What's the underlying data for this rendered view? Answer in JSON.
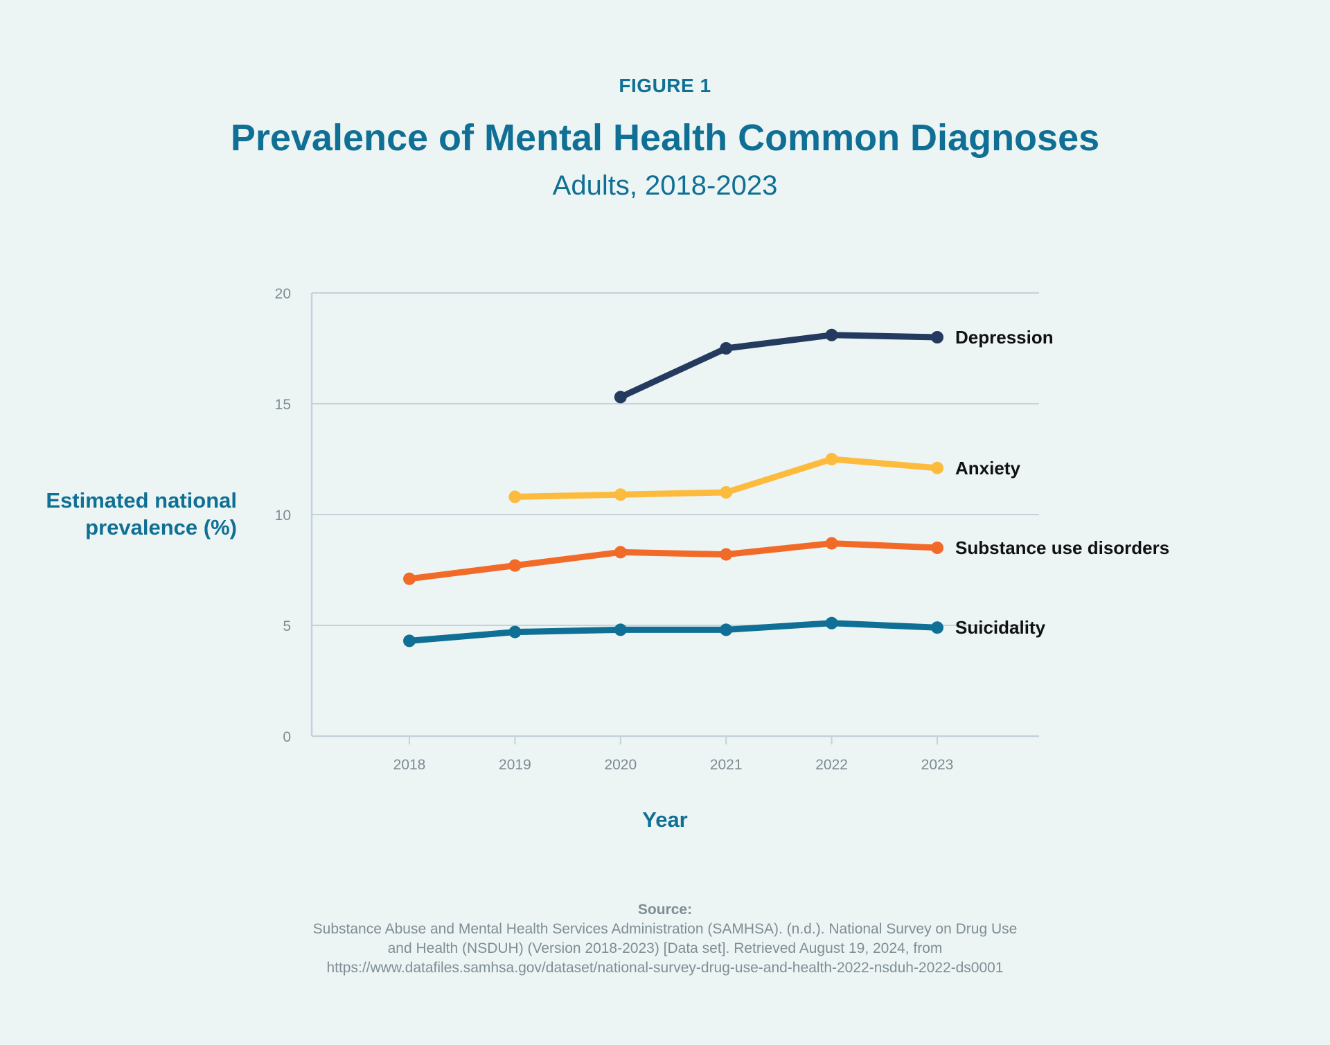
{
  "figure_label": "FIGURE 1",
  "colors": {
    "accent": "#0f6f94",
    "grid": "#c5d2db",
    "tick_text": "#7d8a93",
    "label_text": "#111111",
    "depression": "#243a5e",
    "anxiety": "#fdbb3e",
    "substance": "#f26a28",
    "suicidality": "#0f6f94"
  },
  "chart_data": {
    "type": "line",
    "title": "Prevalence of Mental Health Common Diagnoses",
    "subtitle": "Adults, 2018-2023",
    "xlabel": "Year",
    "ylabel_lines": [
      "Estimated national",
      "prevalence (%)"
    ],
    "x": [
      "2018",
      "2019",
      "2020",
      "2021",
      "2022",
      "2023"
    ],
    "ylim": [
      0,
      20
    ],
    "yticks": [
      0,
      5,
      10,
      15,
      20
    ],
    "grid": true,
    "legend": "direct labels at right end of each line",
    "series": [
      {
        "name": "Depression",
        "color": "#243a5e",
        "values": [
          null,
          null,
          15.3,
          17.5,
          18.1,
          18.0
        ]
      },
      {
        "name": "Anxiety",
        "color": "#fdbb3e",
        "values": [
          null,
          10.8,
          10.9,
          11.0,
          12.5,
          12.1
        ]
      },
      {
        "name": "Substance use disorders",
        "color": "#f26a28",
        "values": [
          7.1,
          7.7,
          8.3,
          8.2,
          8.7,
          8.5
        ]
      },
      {
        "name": "Suicidality",
        "color": "#0f6f94",
        "values": [
          4.3,
          4.7,
          4.8,
          4.8,
          5.1,
          4.9
        ]
      }
    ]
  },
  "source": {
    "heading": "Source:",
    "line1": "Substance Abuse and Mental Health Services Administration (SAMHSA). (n.d.). National Survey on Drug Use",
    "line2": "and Health (NSDUH) (Version 2018-2023) [Data set]. Retrieved August 19, 2024, from",
    "line3": "https://www.datafiles.samhsa.gov/dataset/national-survey-drug-use-and-health-2022-nsduh-2022-ds0001"
  }
}
